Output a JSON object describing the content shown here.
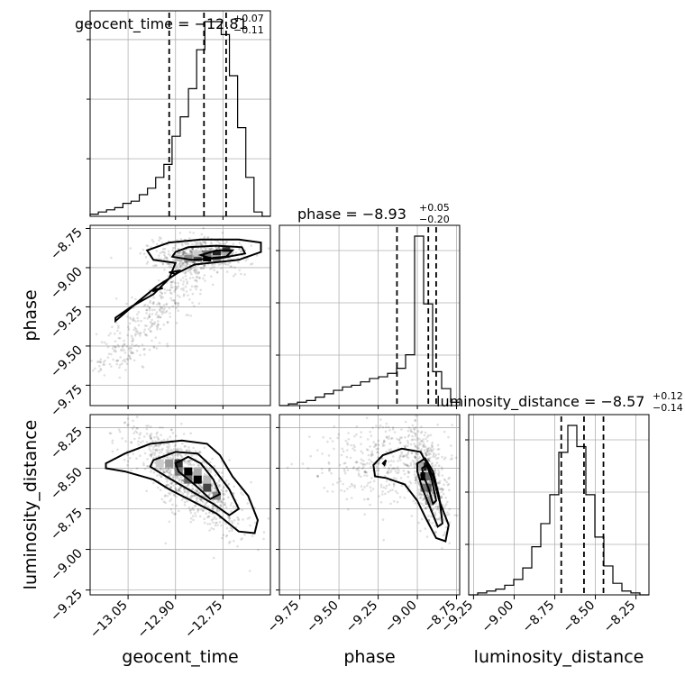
{
  "chart_data": {
    "type": "corner",
    "parameters": [
      "geocent_time",
      "phase",
      "luminosity_distance"
    ],
    "axis_labels": {
      "geocent_time": "geocent_time",
      "phase": "phase",
      "luminosity_distance": "luminosity_distance"
    },
    "titles": [
      {
        "param": "geocent_time",
        "prefix": "geocent_time = −12.81",
        "upper": "+0.07",
        "lower": "−0.11"
      },
      {
        "param": "phase",
        "prefix": "phase = −8.93",
        "upper": "+0.05",
        "lower": "−0.20"
      },
      {
        "param": "luminosity_distance",
        "prefix": "luminosity_distance = −8.57",
        "upper": "+0.12",
        "lower": "−0.14"
      }
    ],
    "ranges": {
      "geocent_time": [
        -13.17,
        -12.6
      ],
      "phase": [
        -9.88,
        -8.73
      ],
      "luminosity_distance": [
        -9.28,
        -8.17
      ]
    },
    "ticks": {
      "geocent_time": [
        {
          "v": -13.05,
          "label": "−13.05"
        },
        {
          "v": -12.9,
          "label": "−12.90"
        },
        {
          "v": -12.75,
          "label": "−12.75"
        }
      ],
      "phase": [
        {
          "v": -9.75,
          "label": "−9.75"
        },
        {
          "v": -9.5,
          "label": "−9.50"
        },
        {
          "v": -9.25,
          "label": "−9.25"
        },
        {
          "v": -9.0,
          "label": "−9.00"
        },
        {
          "v": -8.75,
          "label": "−8.75"
        }
      ],
      "luminosity_distance": [
        {
          "v": -9.25,
          "label": "−9.25"
        },
        {
          "v": -9.0,
          "label": "−9.00"
        },
        {
          "v": -8.75,
          "label": "−8.75"
        },
        {
          "v": -8.5,
          "label": "−8.50"
        },
        {
          "v": -8.25,
          "label": "−8.25"
        }
      ]
    },
    "quantiles": {
      "geocent_time": [
        -12.92,
        -12.81,
        -12.74
      ],
      "phase": [
        -9.13,
        -8.93,
        -8.88
      ],
      "luminosity_distance": [
        -8.71,
        -8.57,
        -8.45
      ]
    },
    "histograms": {
      "geocent_time": [
        1,
        2,
        3,
        4,
        6,
        7,
        10,
        13,
        18,
        24,
        37,
        46,
        59,
        77,
        90,
        90,
        84,
        65,
        41,
        18,
        2,
        0
      ],
      "phase": [
        0,
        1,
        2,
        3,
        5,
        7,
        9,
        11,
        12,
        14,
        16,
        17,
        19,
        22,
        30,
        100,
        60,
        20,
        10,
        2
      ],
      "luminosity_distance": [
        0,
        1,
        2,
        3,
        5,
        8,
        14,
        25,
        37,
        52,
        74,
        88,
        77,
        52,
        30,
        15,
        6,
        2,
        1,
        0
      ]
    },
    "grid": true,
    "samples_seed": 7
  }
}
